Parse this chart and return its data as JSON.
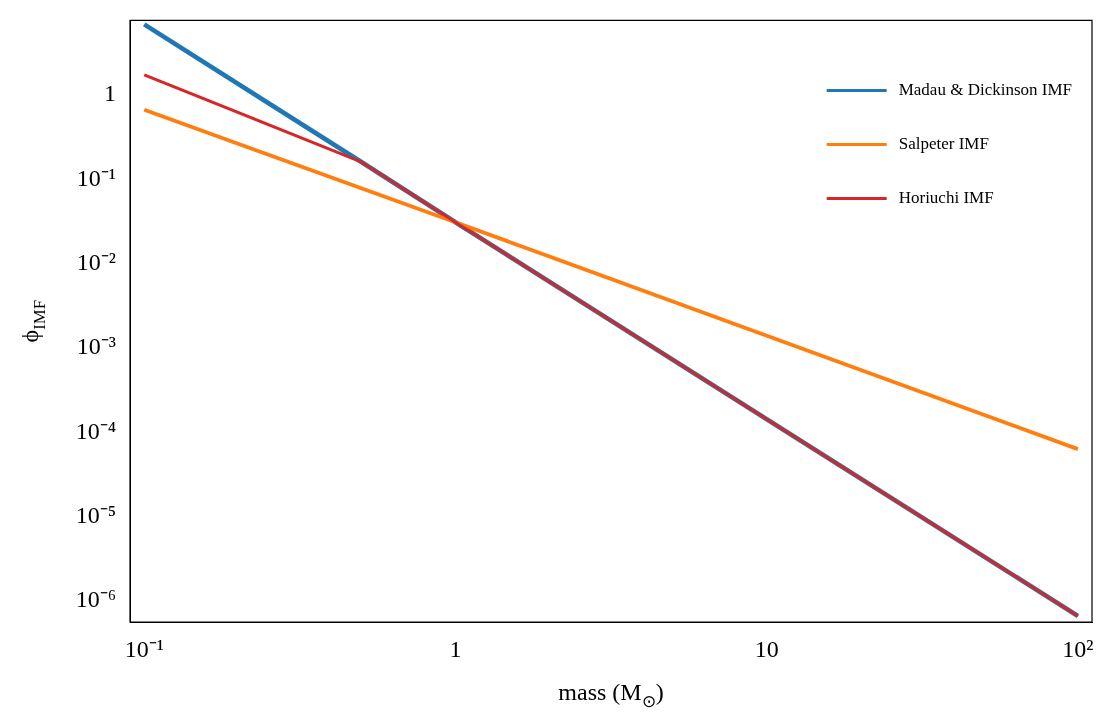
{
  "chart_data": {
    "type": "line",
    "xlabel": "mass (M$_{⊙}$)",
    "ylabel": "ϕ$_{IMF}$",
    "log": "xy",
    "grid": false,
    "legend": "top right",
    "marker": "none",
    "line_style": "solid",
    "xlim": [
      0.09,
      111
    ],
    "ylim": [
      5.6e-07,
      7.7
    ],
    "xticks": [
      {
        "value": 0.1,
        "label": "10⁻¹"
      },
      1,
      10,
      {
        "value": 100,
        "label": "10²"
      }
    ],
    "yticks": [
      {
        "value": 1e-06,
        "label": "10⁻⁶"
      },
      {
        "value": 1e-05,
        "label": "10⁻⁵"
      },
      {
        "value": 0.0001,
        "label": "10⁻⁴"
      },
      {
        "value": 0.001,
        "label": "10⁻³"
      },
      {
        "value": 0.01,
        "label": "10⁻²"
      },
      {
        "value": 0.1,
        "label": "10⁻¹"
      },
      1
    ],
    "series": [
      {
        "name": "Madau & Dickinson IMF",
        "color": "#1f77b4",
        "x": [
          0.1,
          0.5,
          1,
          100
        ],
        "values": [
          6.9,
          0.16,
          0.031,
          6.6e-07
        ]
      },
      {
        "name": "Salpeter IMF",
        "color": "#ff7f0e",
        "x": [
          0.1,
          1,
          100
        ],
        "values": [
          0.67,
          0.031,
          6.3e-05
        ]
      },
      {
        "name": "Horiuchi IMF",
        "color": "#d62728",
        "x": [
          0.1,
          0.5,
          1,
          100
        ],
        "values": [
          1.74,
          0.16,
          0.031,
          6.6e-07
        ]
      }
    ]
  }
}
